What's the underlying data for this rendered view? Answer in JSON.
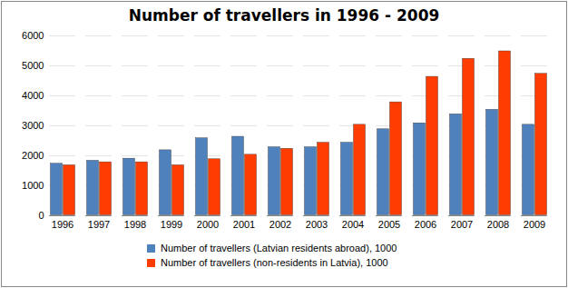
{
  "chart_data": {
    "type": "bar",
    "title": "Number of travellers in 1996 - 2009",
    "categories": [
      "1996",
      "1997",
      "1998",
      "1999",
      "2000",
      "2001",
      "2002",
      "2003",
      "2004",
      "2005",
      "2006",
      "2007",
      "2008",
      "2009"
    ],
    "series": [
      {
        "name": "Number of travellers (Latvian residents abroad), 1000",
        "color": "#4f81bd",
        "values": [
          1750,
          1850,
          1920,
          2200,
          2600,
          2650,
          2300,
          2300,
          2450,
          2900,
          3100,
          3400,
          3550,
          3050
        ]
      },
      {
        "name": "Number of travellers (non-residents in Latvia), 1000",
        "color": "#ff3d00",
        "values": [
          1700,
          1800,
          1800,
          1700,
          1900,
          2050,
          2250,
          2450,
          3050,
          3800,
          4650,
          5250,
          5500,
          4750
        ]
      }
    ],
    "ylim": [
      0,
      6000
    ],
    "yticks": [
      0,
      1000,
      2000,
      3000,
      4000,
      5000,
      6000
    ],
    "grid": true,
    "legend": "bottom"
  }
}
